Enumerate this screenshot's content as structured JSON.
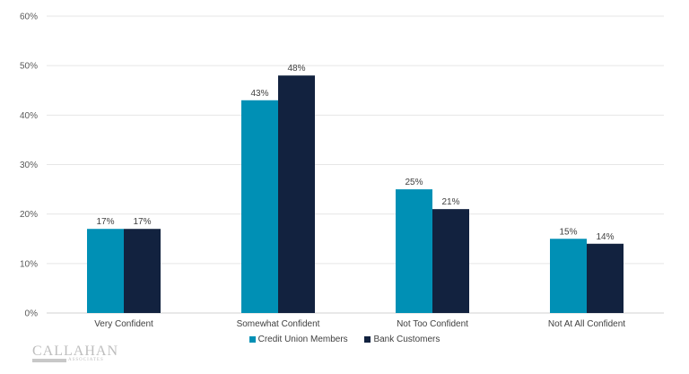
{
  "chart_data": {
    "type": "bar",
    "title": "",
    "xlabel": "",
    "ylabel": "",
    "categories": [
      "Very Confident",
      "Somewhat Confident",
      "Not Too Confident",
      "Not At All Confident"
    ],
    "series": [
      {
        "name": "Credit Union Members",
        "color": "#0090B5",
        "values": [
          17,
          43,
          25,
          15
        ],
        "labels": [
          "17%",
          "43%",
          "25%",
          "15%"
        ]
      },
      {
        "name": "Bank Customers",
        "color": "#12223F",
        "values": [
          17,
          48,
          21,
          14
        ],
        "labels": [
          "17%",
          "48%",
          "21%",
          "14%"
        ]
      }
    ],
    "ylim": [
      0,
      60
    ],
    "yticks": [
      0,
      10,
      20,
      30,
      40,
      50,
      60
    ],
    "ytick_labels": [
      "0%",
      "10%",
      "20%",
      "30%",
      "40%",
      "50%",
      "60%"
    ],
    "grid": true,
    "legend_position": "bottom"
  },
  "logo": {
    "name": "CALLAHAN",
    "sub": "ASSOCIATES"
  }
}
